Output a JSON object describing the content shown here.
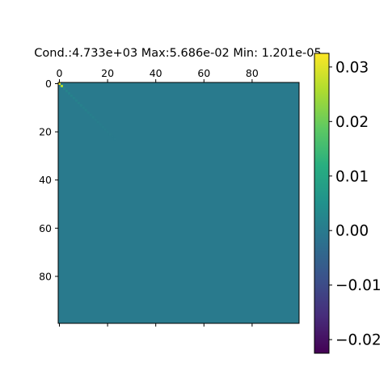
{
  "chart_data": {
    "type": "heatmap",
    "title": "Cond.:4.733e+03 Max:5.686e-02 Min: 1.201e-05",
    "matrix_size": 100,
    "x_ticks": [
      0,
      20,
      40,
      60,
      80
    ],
    "x_tick_labels": [
      "0",
      "20",
      "40",
      "60",
      "80"
    ],
    "y_ticks": [
      0,
      20,
      40,
      60,
      80
    ],
    "y_tick_labels": [
      "0",
      "20",
      "40",
      "60",
      "80"
    ],
    "x_range": [
      0,
      100
    ],
    "y_range": [
      0,
      100
    ],
    "x_ticks_position": "top",
    "colormap": "viridis",
    "background_value": 0.0,
    "diagonal_highlights": [
      {
        "row": 0,
        "col": 0,
        "value": 0.031
      },
      {
        "row": 1,
        "col": 1,
        "value": 0.026
      }
    ],
    "colorbar": {
      "range": [
        -0.0225,
        0.0325
      ],
      "ticks": [
        0.03,
        0.02,
        0.01,
        0.0,
        -0.01,
        -0.02
      ],
      "tick_labels": [
        "0.03",
        "0.02",
        "0.01",
        "0.00",
        "−0.01",
        "−0.02"
      ],
      "position": "right"
    }
  }
}
